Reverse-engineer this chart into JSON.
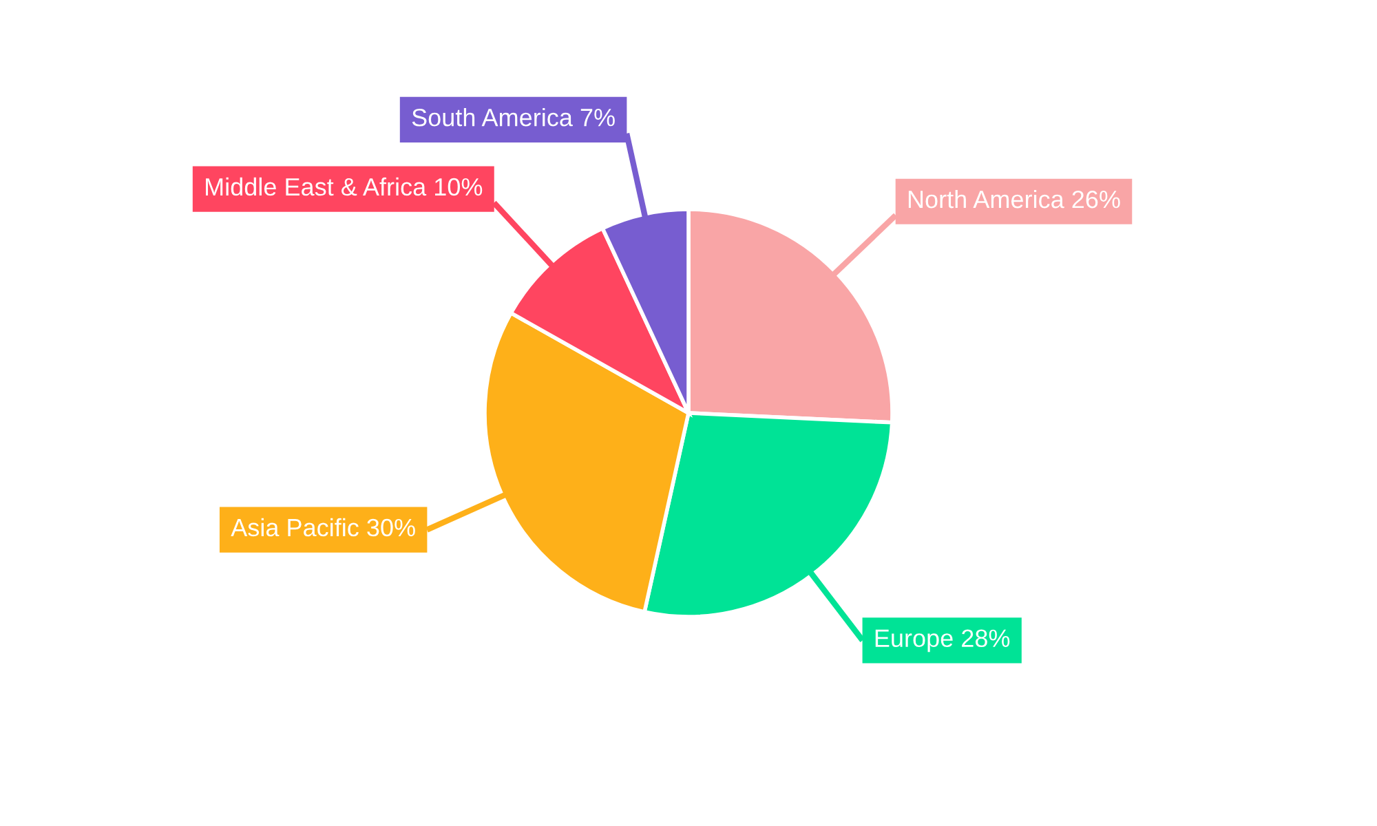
{
  "chart_data": {
    "type": "pie",
    "categories": [
      "North America",
      "Europe",
      "Asia Pacific",
      "Middle East & Africa",
      "South America"
    ],
    "values": [
      26,
      28,
      30,
      10,
      7
    ],
    "colors": [
      "#f9a5a6",
      "#00e396",
      "#feb019",
      "#ff4560",
      "#775dd0"
    ],
    "value_labels": [
      "26%",
      "28%",
      "30%",
      "10%",
      "7%"
    ]
  }
}
